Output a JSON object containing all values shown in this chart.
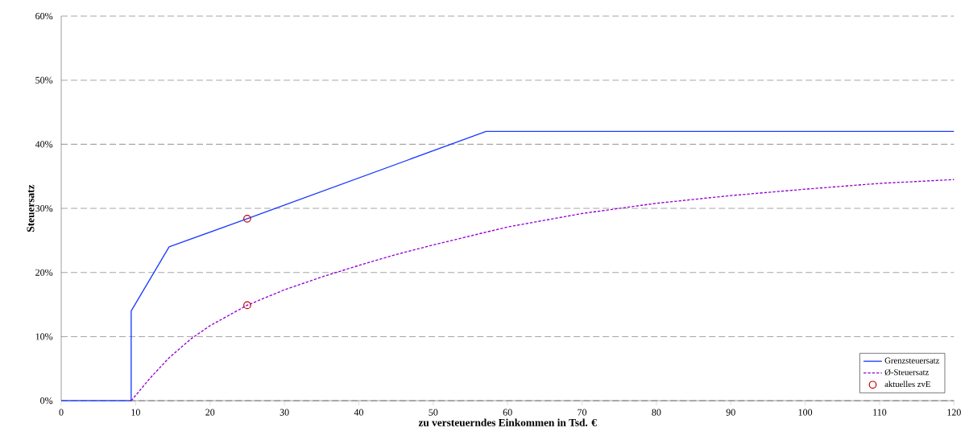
{
  "chart_data": {
    "type": "line",
    "xlabel": "zu versteuerndes Einkommen in Tsd. €",
    "ylabel": "Steuersatz",
    "xlim": [
      0,
      120
    ],
    "ylim": [
      0,
      60
    ],
    "xticks": [
      0,
      10,
      20,
      30,
      40,
      50,
      60,
      70,
      80,
      90,
      100,
      110,
      120
    ],
    "yticks": [
      {
        "value": 0,
        "label": "0%"
      },
      {
        "value": 10,
        "label": "10%"
      },
      {
        "value": 20,
        "label": "20%"
      },
      {
        "value": 30,
        "label": "30%"
      },
      {
        "value": 40,
        "label": "40%"
      },
      {
        "value": 50,
        "label": "50%"
      },
      {
        "value": 60,
        "label": "60%"
      }
    ],
    "grid": "y",
    "legend": "bottom right",
    "series": [
      {
        "name": "Grenzsteuersatz",
        "color": "#1a3cff",
        "line_style": "solid",
        "marker": "none",
        "x": [
          0,
          9.4,
          9.4,
          14.5,
          25,
          57.1,
          120
        ],
        "values": [
          0,
          0,
          14,
          24,
          28.4,
          42,
          42
        ]
      },
      {
        "name": "Ø-Steuersatz",
        "color": "#9400d3",
        "line_style": "dashed",
        "marker": "none",
        "x": [
          9.4,
          12,
          14.5,
          17.5,
          20,
          25,
          30,
          35,
          40,
          45,
          50,
          57.1,
          60,
          70,
          80,
          90,
          100,
          110,
          120
        ],
        "values": [
          0,
          3.6,
          6.7,
          9.7,
          11.7,
          14.9,
          17.3,
          19.3,
          21.1,
          22.8,
          24.3,
          26.3,
          27.1,
          29.2,
          30.8,
          32.0,
          33.0,
          33.9,
          34.5
        ]
      },
      {
        "name": "aktuelles zvE",
        "type": "scatter",
        "color": "#c00000",
        "marker": "circle",
        "x": [
          25,
          25
        ],
        "values": [
          28.4,
          14.9
        ]
      }
    ]
  }
}
